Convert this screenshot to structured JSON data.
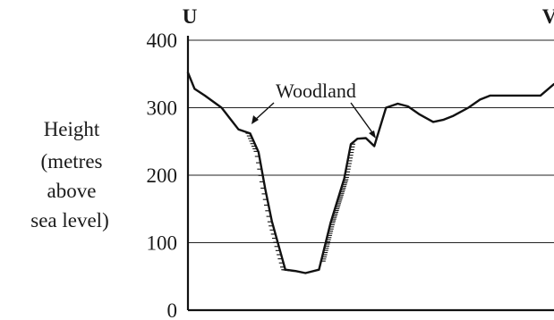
{
  "chart_data": {
    "type": "line",
    "title": "",
    "xlabel": "",
    "ylabel_lines": [
      "Height",
      "(metres",
      "above",
      "sea level)"
    ],
    "ylim": [
      0,
      400
    ],
    "yticks": [
      "0",
      "100",
      "200",
      "300",
      "400"
    ],
    "grid": true,
    "end_labels": {
      "left": "U",
      "right": "V"
    },
    "annotation": "Woodland",
    "series": [
      {
        "x": [
          0.0,
          0.018,
          0.046,
          0.092,
          0.138,
          0.17,
          0.193,
          0.211,
          0.229,
          0.266,
          0.294,
          0.321,
          0.358,
          0.39,
          0.427,
          0.445,
          0.463,
          0.486,
          0.509,
          0.541,
          0.573,
          0.601,
          0.633,
          0.67,
          0.697,
          0.725,
          0.766,
          0.798,
          0.826,
          0.866,
          0.917,
          0.963,
          1.0
        ],
        "y": [
          352,
          328,
          318,
          300,
          268,
          262,
          234,
          180,
          132,
          60,
          58,
          55,
          60,
          130,
          195,
          246,
          254,
          255,
          243,
          300,
          306,
          302,
          290,
          279,
          282,
          288,
          300,
          312,
          318,
          318,
          318,
          318,
          335
        ]
      }
    ],
    "woodland_segments": [
      [
        0.17,
        0.358
      ],
      [
        0.358,
        0.445
      ]
    ]
  }
}
